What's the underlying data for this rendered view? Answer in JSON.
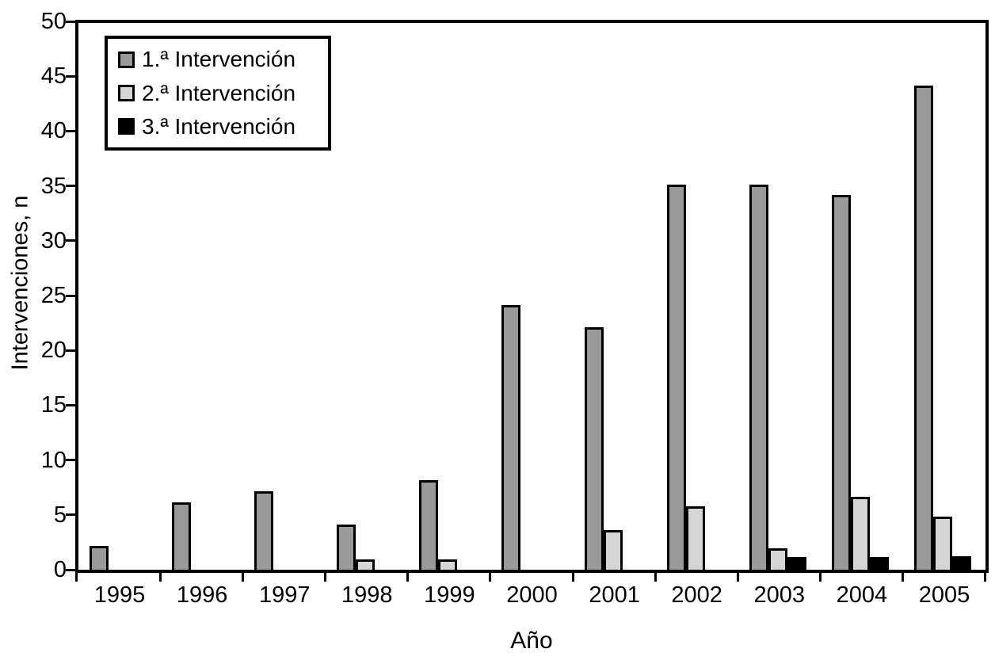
{
  "chart_data": {
    "type": "bar",
    "title": "",
    "xlabel": "Año",
    "ylabel": "Intervenciones, n",
    "categories": [
      "1995",
      "1996",
      "1997",
      "1998",
      "1999",
      "2000",
      "2001",
      "2002",
      "2003",
      "2004",
      "2005"
    ],
    "series": [
      {
        "name": "1.ª Intervención",
        "color": "#999999",
        "values": [
          2,
          6,
          7,
          4,
          8,
          24,
          22,
          35,
          35,
          34,
          44
        ]
      },
      {
        "name": "2.ª Intervención",
        "color": "#d6d6d6",
        "values": [
          0,
          0,
          0,
          0.8,
          0.8,
          0,
          3.5,
          5.6,
          1.8,
          6.5,
          4.7
        ]
      },
      {
        "name": "3.ª Intervención",
        "color": "#000000",
        "values": [
          0,
          0,
          0,
          0,
          0,
          0,
          0,
          0,
          1,
          1,
          1.1
        ]
      }
    ],
    "y_ticks": [
      0,
      5,
      10,
      15,
      20,
      25,
      30,
      35,
      40,
      45,
      50
    ],
    "ylim": [
      0,
      50
    ],
    "grid": false,
    "legend_position": "top-left",
    "frame": true,
    "bar_border_color": "#000000",
    "background_color": "#ffffff"
  }
}
